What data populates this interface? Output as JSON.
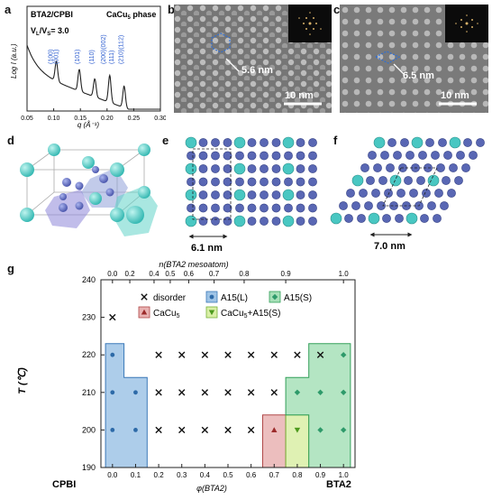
{
  "panel_labels": {
    "a": "a",
    "b": "b",
    "c": "c",
    "d": "d",
    "e": "e",
    "f": "f",
    "g": "g"
  },
  "panel_a": {
    "sample": "BTA2/CPBI",
    "ratio": "V",
    "ratio_sub1": "L",
    "ratio_mid": "/V",
    "ratio_sub2": "S",
    "ratio_value": "= 3.0",
    "phase": "CaCu",
    "phase_sub": "5",
    "phase_suffix": " phase",
    "ylabel": "Log I (a.u.)",
    "xlabel": "q (Å⁻¹)",
    "xticks": [
      "0.05",
      "0.10",
      "0.15",
      "0.20",
      "0.25",
      "0.30"
    ],
    "peaks": [
      "(100)",
      "(001)",
      "(101)",
      "(110)",
      "(200)(002)",
      "(111)",
      "(210)(112)"
    ]
  },
  "panel_b": {
    "spacing": "5.6 nm",
    "scale": "10 nm"
  },
  "panel_c": {
    "spacing": "6.5 nm",
    "scale": "10 nm"
  },
  "panel_e": {
    "spacing": "6.1 nm"
  },
  "panel_f": {
    "spacing": "7.0 nm"
  },
  "chart_data": {
    "type": "scatter",
    "ylabel": "T (℃)",
    "xlabel": "φ(BTA2)",
    "top_xlabel": "n(BTA2 mesoatom)",
    "ylim": [
      190,
      240
    ],
    "xlim": [
      -0.05,
      1.05
    ],
    "yticks": [
      "190",
      "200",
      "210",
      "220",
      "230",
      "240"
    ],
    "xticks": [
      "0.0",
      "0.1",
      "0.2",
      "0.3",
      "0.4",
      "0.5",
      "0.6",
      "0.7",
      "0.8",
      "0.9",
      "1.0"
    ],
    "top_ticks": [
      {
        "label": "0.0",
        "phi": 0.0
      },
      {
        "label": "0.2",
        "phi": 0.075
      },
      {
        "label": "0.4",
        "phi": 0.18
      },
      {
        "label": "0.5",
        "phi": 0.25
      },
      {
        "label": "0.6",
        "phi": 0.33
      },
      {
        "label": "0.7",
        "phi": 0.44
      },
      {
        "label": "0.8",
        "phi": 0.57
      },
      {
        "label": "0.9",
        "phi": 0.75
      },
      {
        "label": "1.0",
        "phi": 1.0
      }
    ],
    "left_end_label": "CPBI",
    "right_end_label": "BTA2",
    "legend": [
      {
        "name": "disorder",
        "marker": "x",
        "color": "#111111"
      },
      {
        "name": "A15(L)",
        "marker": "circle",
        "color": "#2d6aa8"
      },
      {
        "name": "A15(S)",
        "marker": "diamond",
        "color": "#2e9a6a"
      },
      {
        "name": "CaCu",
        "name_sub": "5",
        "marker": "triangle-up",
        "color": "#9c2b2b"
      },
      {
        "name": "CaCu",
        "name_sub": "5",
        "name_suffix": "+A15(S)",
        "marker": "triangle-down",
        "color": "#4d9a1e"
      }
    ],
    "series": [
      {
        "name": "disorder",
        "points": [
          [
            0.0,
            230
          ],
          [
            0.2,
            220
          ],
          [
            0.3,
            220
          ],
          [
            0.4,
            220
          ],
          [
            0.5,
            220
          ],
          [
            0.6,
            220
          ],
          [
            0.7,
            220
          ],
          [
            0.8,
            220
          ],
          [
            0.9,
            220
          ],
          [
            0.2,
            210
          ],
          [
            0.3,
            210
          ],
          [
            0.4,
            210
          ],
          [
            0.5,
            210
          ],
          [
            0.6,
            210
          ],
          [
            0.7,
            210
          ],
          [
            0.2,
            200
          ],
          [
            0.3,
            200
          ],
          [
            0.4,
            200
          ],
          [
            0.5,
            200
          ],
          [
            0.6,
            200
          ]
        ]
      },
      {
        "name": "A15(L)",
        "points": [
          [
            0.0,
            220
          ],
          [
            0.0,
            210
          ],
          [
            0.0,
            200
          ],
          [
            0.1,
            210
          ],
          [
            0.1,
            200
          ]
        ]
      },
      {
        "name": "A15(S)",
        "points": [
          [
            1.0,
            220
          ],
          [
            1.0,
            210
          ],
          [
            1.0,
            200
          ],
          [
            0.9,
            210
          ],
          [
            0.9,
            200
          ],
          [
            0.8,
            210
          ]
        ]
      },
      {
        "name": "CaCu5",
        "points": [
          [
            0.7,
            200
          ]
        ]
      },
      {
        "name": "CaCu5+A15(S)",
        "points": [
          [
            0.8,
            200
          ]
        ]
      }
    ],
    "regions": [
      {
        "name": "A15(L)",
        "fill": "#9fc4e6",
        "stroke": "#3a78b8",
        "steps": [
          [
            -0.03,
            223
          ],
          [
            0.05,
            223
          ],
          [
            0.05,
            214
          ],
          [
            0.15,
            214
          ],
          [
            0.15,
            190
          ],
          [
            -0.03,
            190
          ]
        ]
      },
      {
        "name": "CaCu5",
        "fill": "#e9b3b3",
        "stroke": "#b04848",
        "steps": [
          [
            0.65,
            204
          ],
          [
            0.75,
            204
          ],
          [
            0.75,
            190
          ],
          [
            0.65,
            190
          ]
        ]
      },
      {
        "name": "CaCu5+A15(S)",
        "fill": "#d9efa6",
        "stroke": "#77b23a",
        "steps": [
          [
            0.75,
            204
          ],
          [
            0.85,
            204
          ],
          [
            0.85,
            190
          ],
          [
            0.75,
            190
          ]
        ]
      },
      {
        "name": "A15(S)",
        "fill": "#a7e0b8",
        "stroke": "#33a05a",
        "steps": [
          [
            0.75,
            214
          ],
          [
            0.85,
            214
          ],
          [
            0.85,
            223
          ],
          [
            1.03,
            223
          ],
          [
            1.03,
            190
          ],
          [
            0.85,
            190
          ],
          [
            0.85,
            204
          ],
          [
            0.75,
            204
          ]
        ]
      }
    ]
  }
}
